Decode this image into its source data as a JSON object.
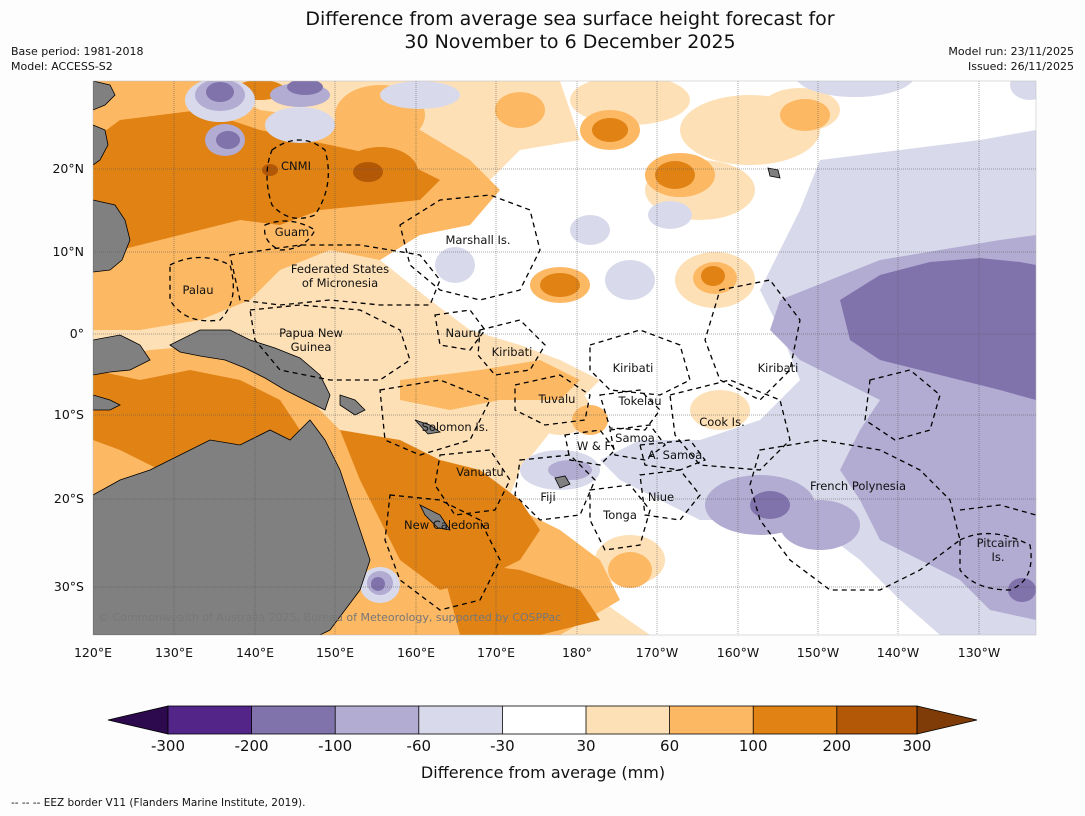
{
  "title_line1": "Difference from average sea surface height forecast for",
  "title_line2": "30 November to 6 December 2025",
  "meta_left": [
    "Base period: 1981-2018",
    "Model: ACCESS-S2"
  ],
  "meta_right": [
    "Model run: 23/11/2025",
    "Issued: 26/11/2025"
  ],
  "copyright": "© Commonwealth of Australia 2025, Bureau of Meteorology, supported by COSPPac",
  "footnote": "-- -- -- EEZ border V11 (Flanders Marine Institute, 2019).",
  "lon_ticks": [
    "120°E",
    "130°E",
    "140°E",
    "150°E",
    "160°E",
    "170°E",
    "180°",
    "170°W",
    "160°W",
    "150°W",
    "140°W",
    "130°W"
  ],
  "lat_ticks": [
    "20°N",
    "10°N",
    "0°",
    "10°S",
    "20°S",
    "30°S"
  ],
  "region_labels": [
    {
      "id": "cnmi",
      "text": "CNMI"
    },
    {
      "id": "guam",
      "text": "Guam"
    },
    {
      "id": "marshall",
      "text": "Marshall Is."
    },
    {
      "id": "fsm1",
      "text": "Federated States"
    },
    {
      "id": "fsm2",
      "text": "of Micronesia"
    },
    {
      "id": "palau",
      "text": "Palau"
    },
    {
      "id": "png1",
      "text": "Papua New"
    },
    {
      "id": "png2",
      "text": "Guinea"
    },
    {
      "id": "nauru",
      "text": "Nauru"
    },
    {
      "id": "kiribati1",
      "text": "Kiribati"
    },
    {
      "id": "kiribati2",
      "text": "Kiribati"
    },
    {
      "id": "kiribati3",
      "text": "Kiribati"
    },
    {
      "id": "tuvalu",
      "text": "Tuvalu"
    },
    {
      "id": "tokelau",
      "text": "Tokelau"
    },
    {
      "id": "cook",
      "text": "Cook Is."
    },
    {
      "id": "solomon",
      "text": "Solomon Is."
    },
    {
      "id": "wf",
      "text": "W & F"
    },
    {
      "id": "samoa",
      "text": "Samoa"
    },
    {
      "id": "asamoa",
      "text": "A. Samoa"
    },
    {
      "id": "vanuatu",
      "text": "Vanuatu"
    },
    {
      "id": "fiji",
      "text": "Fiji"
    },
    {
      "id": "niue",
      "text": "Niue"
    },
    {
      "id": "tonga",
      "text": "Tonga"
    },
    {
      "id": "newcal",
      "text": "New Caledonia"
    },
    {
      "id": "frpoly",
      "text": "French Polynesia"
    },
    {
      "id": "pitcairn1",
      "text": "Pitcairn"
    },
    {
      "id": "pitcairn2",
      "text": "Is."
    }
  ],
  "colorbar": {
    "title": "Difference from average (mm)",
    "ticks": [
      "-300",
      "-200",
      "-100",
      "-60",
      "-30",
      "30",
      "60",
      "100",
      "200",
      "300"
    ],
    "colors": [
      "#2d0a4e",
      "#542588",
      "#8073ac",
      "#b2abd2",
      "#d8daeb",
      "#ffffff",
      "#fee0b6",
      "#fdb863",
      "#e08214",
      "#b35806",
      "#7f3b08"
    ]
  }
}
